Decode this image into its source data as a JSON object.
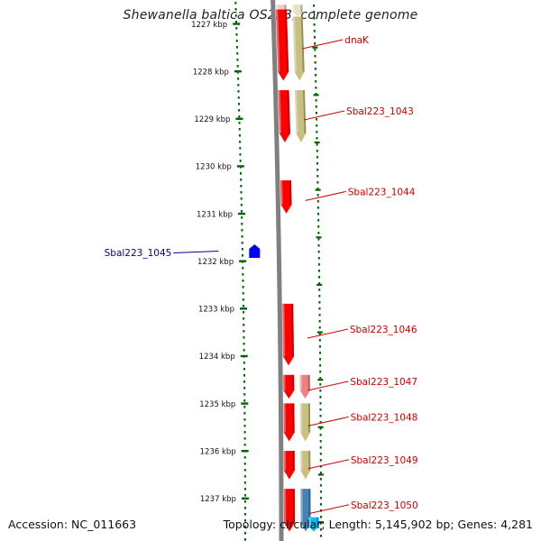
{
  "title": "Shewanella baltica OS223, complete genome",
  "footer": {
    "accession": "Accession: NC_011663",
    "summary": "Topology: circular; Length: 5,145,902 bp; Genes: 4,281"
  },
  "colors": {
    "gene_forward": "#ff0000",
    "gene_reverse": "#0000ff",
    "orf_olive": "#c8c080",
    "orf_pink": "#f08080",
    "orf_blue": "#4682b4",
    "orf_cyan": "#00bfff",
    "ruler": "#006400",
    "backbone": "#808080",
    "label_forward": "#cc0000",
    "label_reverse": "#000099"
  },
  "ruler": {
    "start_kbp": 1226.6,
    "end_kbp": 1237.7,
    "tick_labels": [
      "1227 kbp",
      "1228 kbp",
      "1229 kbp",
      "1230 kbp",
      "1231 kbp",
      "1232 kbp",
      "1233 kbp",
      "1234 kbp",
      "1235 kbp",
      "1236 kbp",
      "1237 kbp"
    ],
    "tick_kbp": [
      1227,
      1228,
      1229,
      1230,
      1231,
      1232,
      1233,
      1234,
      1235,
      1236,
      1237
    ]
  },
  "genes": [
    {
      "label": "dnaK",
      "start_kbp": 1226.7,
      "end_kbp": 1228.2,
      "strand": "+",
      "label_color": "forward"
    },
    {
      "label": "Sbal223_1043",
      "start_kbp": 1228.4,
      "end_kbp": 1229.5,
      "strand": "+",
      "label_color": "forward"
    },
    {
      "label": "Sbal223_1044",
      "start_kbp": 1230.3,
      "end_kbp": 1231.0,
      "strand": "+",
      "label_color": "forward"
    },
    {
      "label": "Sbal223_1045",
      "start_kbp": 1231.7,
      "end_kbp": 1231.9,
      "strand": "-",
      "label_color": "reverse"
    },
    {
      "label": "Sbal223_1046",
      "start_kbp": 1232.9,
      "end_kbp": 1234.2,
      "strand": "+",
      "label_color": "forward"
    },
    {
      "label": "Sbal223_1047",
      "start_kbp": 1234.4,
      "end_kbp": 1234.9,
      "strand": "+",
      "label_color": "forward"
    },
    {
      "label": "Sbal223_1048",
      "start_kbp": 1235.0,
      "end_kbp": 1235.8,
      "strand": "+",
      "label_color": "forward"
    },
    {
      "label": "Sbal223_1049",
      "start_kbp": 1236.0,
      "end_kbp": 1236.6,
      "strand": "+",
      "label_color": "forward"
    },
    {
      "label": "Sbal223_1050",
      "start_kbp": 1236.8,
      "end_kbp": 1237.7,
      "strand": "+",
      "label_color": "forward"
    }
  ],
  "orf_track": [
    {
      "start_kbp": 1226.6,
      "end_kbp": 1226.85,
      "color": "pink_light"
    },
    {
      "start_kbp": 1226.6,
      "end_kbp": 1226.85,
      "color": "olive_light"
    },
    {
      "start_kbp": 1226.85,
      "end_kbp": 1228.2,
      "color": "olive"
    },
    {
      "start_kbp": 1228.4,
      "end_kbp": 1229.5,
      "color": "olive"
    },
    {
      "start_kbp": 1234.4,
      "end_kbp": 1234.9,
      "color": "pink"
    },
    {
      "start_kbp": 1235.0,
      "end_kbp": 1235.8,
      "color": "olive"
    },
    {
      "start_kbp": 1236.0,
      "end_kbp": 1236.6,
      "color": "olive"
    },
    {
      "start_kbp": 1236.8,
      "end_kbp": 1237.7,
      "color": "blue"
    },
    {
      "start_kbp": 1237.4,
      "end_kbp": 1237.7,
      "color": "cyan"
    }
  ]
}
